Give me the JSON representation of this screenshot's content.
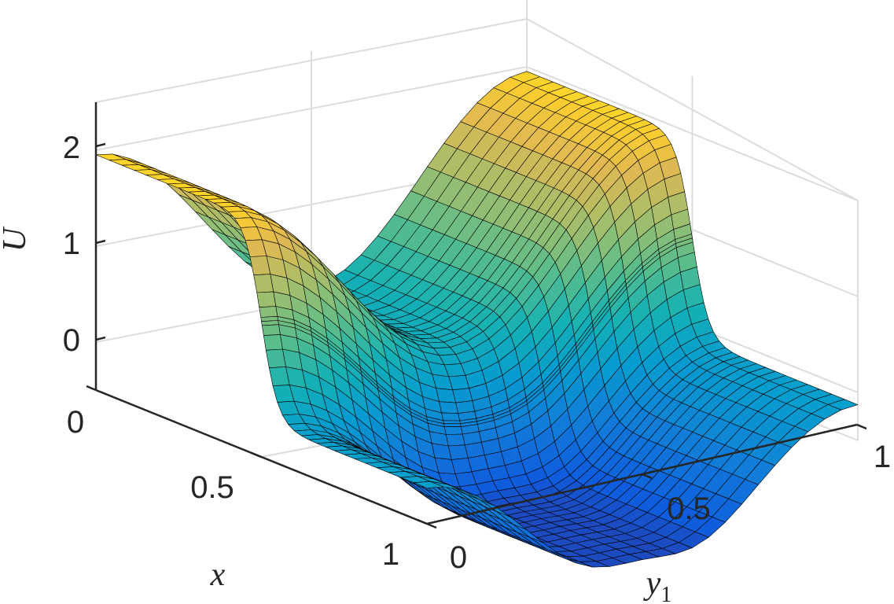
{
  "chart_data": {
    "type": "surface",
    "title": "",
    "colormap": "parula",
    "xlabel": "x",
    "ylabel": "y",
    "ylabel_subscript": "1",
    "zlabel": "U",
    "xlim": [
      0,
      1
    ],
    "ylim": [
      0,
      1
    ],
    "zlim": [
      -0.5,
      2.5
    ],
    "grid": true,
    "x_ticks": [
      "0",
      "0.5",
      "1"
    ],
    "y_ticks": [
      "0",
      "0.5",
      "1"
    ],
    "z_ticks": [
      "0",
      "1",
      "2"
    ],
    "description_of_values": "U(x, y1) ≈ cos(2πy1) + 1 for x < 0.5 (rising to about 2.1 at y1 = 1), and U ≈ cos(2πy1) − 1 + 0.6·bump near y1 ≈ 0.5 for x > 0.5",
    "sample_grid": {
      "x": [
        0,
        0.25,
        0.45,
        0.55,
        0.75,
        1
      ],
      "y1": [
        0,
        0.25,
        0.5,
        0.75,
        1
      ],
      "U": [
        [
          1.95,
          1.05,
          0.15,
          1.0,
          2.05
        ],
        [
          1.95,
          1.05,
          0.15,
          1.0,
          2.05
        ],
        [
          1.9,
          1.05,
          0.2,
          1.0,
          2.0
        ],
        [
          0.05,
          -0.8,
          -1.3,
          -0.9,
          0.0
        ],
        [
          0.0,
          -0.95,
          -1.5,
          -1.0,
          0.0
        ],
        [
          0.0,
          -0.95,
          -1.55,
          -1.0,
          0.0
        ]
      ]
    }
  }
}
